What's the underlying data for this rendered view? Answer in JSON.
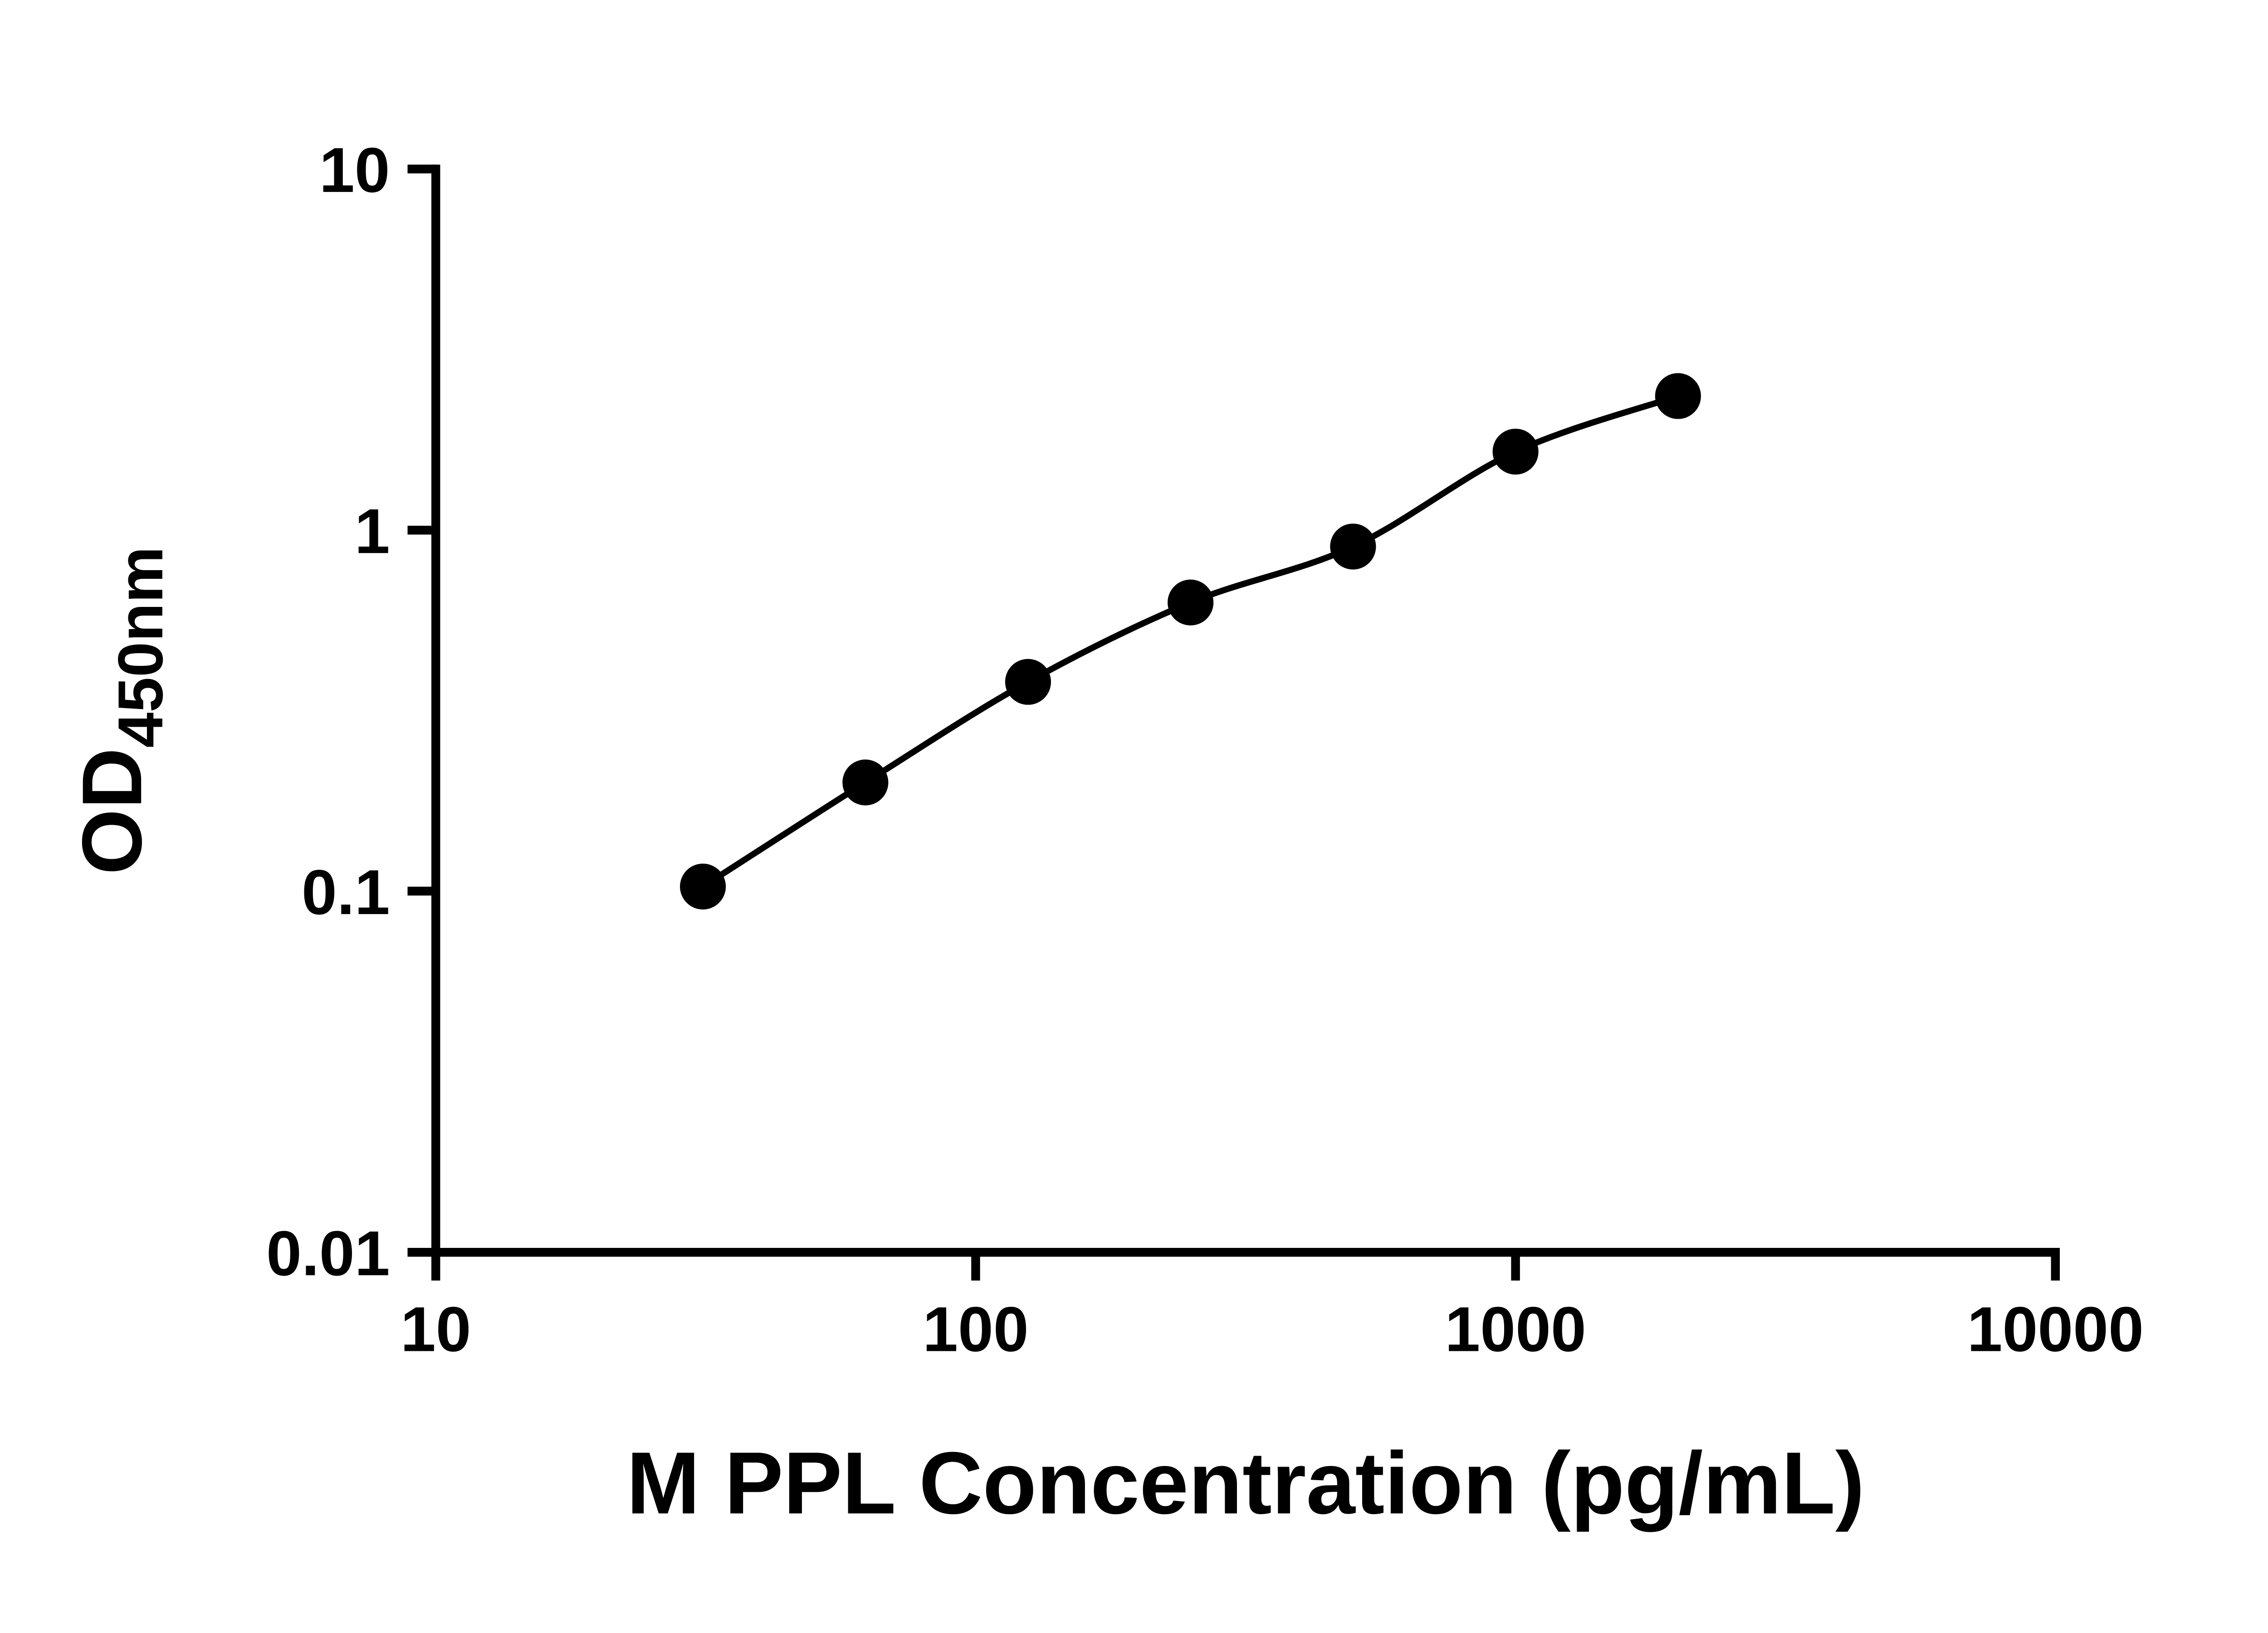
{
  "chart_data": {
    "type": "scatter",
    "title": "",
    "xlabel": "M PPL Concentration (pg/mL)",
    "ylabel_main": "OD",
    "ylabel_sub": "450nm",
    "x_scale": "log",
    "y_scale": "log",
    "xlim": [
      10,
      10000
    ],
    "ylim": [
      0.01,
      10
    ],
    "x_ticks": [
      10,
      100,
      1000,
      10000
    ],
    "x_tick_labels": [
      "10",
      "100",
      "1000",
      "10000"
    ],
    "y_ticks": [
      0.01,
      0.1,
      1,
      10
    ],
    "y_tick_labels": [
      "0.01",
      "0.1",
      "1",
      "10"
    ],
    "grid": false,
    "legend": false,
    "series": [
      {
        "x": [
          31.25,
          62.5,
          125,
          250,
          500,
          1000,
          2000
        ],
        "y": [
          0.103,
          0.2,
          0.38,
          0.63,
          0.9,
          1.65,
          2.35
        ]
      }
    ],
    "colors": {
      "background": "#ffffff",
      "axis": "#000000",
      "line": "#000000",
      "marker": "#000000",
      "text": "#000000"
    }
  }
}
